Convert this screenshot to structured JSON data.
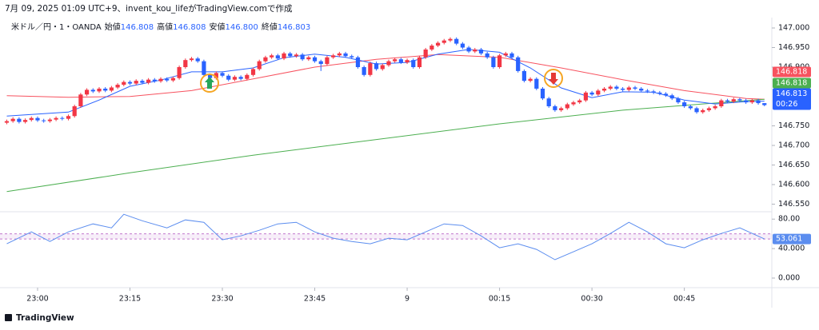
{
  "header": "7月 09, 2025 01:09 UTC+9、invent_kou_lifeがTradingView.comで作成",
  "footer": "TradingView",
  "chart_data": [
    {
      "type": "candlestick",
      "symbol": "米ドル／円・1・OANDA",
      "legend": [
        {
          "label": "始値",
          "value": "146.808"
        },
        {
          "label": "高値",
          "value": "146.808"
        },
        {
          "label": "安値",
          "value": "146.800"
        },
        {
          "label": "終値",
          "value": "146.803"
        }
      ],
      "up_color": "#f23645",
      "down_color": "#2962ff",
      "countdown": "00:26",
      "xlim": [
        -1.1,
        124.2
      ],
      "ylim": [
        146.5306,
        147.0204
      ],
      "yticks": [
        {
          "value": 147.0,
          "label": "147.000"
        },
        {
          "value": 146.95,
          "label": "146.950"
        },
        {
          "value": 146.9,
          "label": "146.900"
        },
        {
          "value": 146.75,
          "label": "146.750"
        },
        {
          "value": 146.7,
          "label": "146.700"
        },
        {
          "value": 146.65,
          "label": "146.650"
        },
        {
          "value": 146.6,
          "label": "146.600"
        },
        {
          "value": 146.55,
          "label": "146.550"
        }
      ],
      "xticks": [
        {
          "value": 5,
          "label": "23:00"
        },
        {
          "value": 20,
          "label": "23:15"
        },
        {
          "value": 35,
          "label": "23:30"
        },
        {
          "value": 50,
          "label": "23:45"
        },
        {
          "value": 65,
          "label": "9"
        },
        {
          "value": 80,
          "label": "00:15"
        },
        {
          "value": 95,
          "label": "00:30"
        },
        {
          "value": 110,
          "label": "00:45"
        }
      ],
      "candles": [
        [
          146.758,
          146.766,
          146.754,
          146.762
        ],
        [
          146.762,
          146.772,
          146.758,
          146.768
        ],
        [
          146.768,
          146.772,
          146.756,
          146.76
        ],
        [
          146.76,
          146.769,
          146.756,
          146.765
        ],
        [
          146.765,
          146.774,
          146.761,
          146.77
        ],
        [
          146.77,
          146.774,
          146.76,
          146.764
        ],
        [
          146.764,
          146.768,
          146.758,
          146.762
        ],
        [
          146.762,
          146.77,
          146.758,
          146.766
        ],
        [
          146.766,
          146.774,
          146.762,
          146.77
        ],
        [
          146.77,
          146.774,
          146.764,
          146.768
        ],
        [
          146.768,
          146.779,
          146.764,
          146.775
        ],
        [
          146.775,
          146.804,
          146.771,
          146.8
        ],
        [
          146.8,
          146.834,
          146.796,
          146.83
        ],
        [
          146.83,
          146.846,
          146.826,
          146.842
        ],
        [
          146.842,
          146.846,
          146.834,
          146.838
        ],
        [
          146.838,
          146.849,
          146.834,
          146.845
        ],
        [
          146.845,
          146.849,
          146.836,
          146.84
        ],
        [
          146.84,
          146.852,
          146.836,
          146.848
        ],
        [
          146.848,
          146.859,
          146.844,
          146.855
        ],
        [
          146.855,
          146.866,
          146.851,
          146.862
        ],
        [
          146.862,
          146.866,
          146.854,
          146.858
        ],
        [
          146.858,
          146.869,
          146.854,
          146.865
        ],
        [
          146.865,
          146.869,
          146.856,
          146.86
        ],
        [
          146.86,
          146.872,
          146.856,
          146.868
        ],
        [
          146.868,
          146.872,
          146.86,
          146.864
        ],
        [
          146.864,
          146.874,
          146.86,
          146.87
        ],
        [
          146.87,
          146.874,
          146.862,
          146.866
        ],
        [
          146.866,
          146.876,
          146.862,
          146.872
        ],
        [
          146.872,
          146.904,
          146.868,
          146.9
        ],
        [
          146.9,
          146.922,
          146.896,
          146.918
        ],
        [
          146.918,
          146.926,
          146.914,
          146.922
        ],
        [
          146.922,
          146.926,
          146.911,
          146.915
        ],
        [
          146.915,
          146.919,
          146.876,
          146.88
        ],
        [
          146.88,
          146.884,
          146.868,
          146.872
        ],
        [
          146.872,
          146.889,
          146.868,
          146.885
        ],
        [
          146.885,
          146.889,
          146.874,
          146.878
        ],
        [
          146.878,
          146.882,
          146.864,
          146.868
        ],
        [
          146.868,
          146.879,
          146.864,
          146.875
        ],
        [
          146.875,
          146.879,
          146.866,
          146.87
        ],
        [
          146.87,
          146.884,
          146.866,
          146.88
        ],
        [
          146.88,
          146.899,
          146.876,
          146.895
        ],
        [
          146.895,
          146.919,
          146.891,
          146.915
        ],
        [
          146.915,
          146.929,
          146.911,
          146.925
        ],
        [
          146.925,
          146.934,
          146.921,
          146.93
        ],
        [
          146.93,
          146.934,
          146.918,
          146.922
        ],
        [
          146.922,
          146.939,
          146.918,
          146.935
        ],
        [
          146.935,
          146.939,
          146.924,
          146.928
        ],
        [
          146.928,
          146.936,
          146.924,
          146.932
        ],
        [
          146.932,
          146.936,
          146.916,
          146.92
        ],
        [
          146.92,
          146.929,
          146.916,
          146.925
        ],
        [
          146.925,
          146.929,
          146.911,
          146.915
        ],
        [
          146.915,
          146.919,
          146.89,
          146.908
        ],
        [
          146.908,
          146.929,
          146.904,
          146.925
        ],
        [
          146.925,
          146.934,
          146.921,
          146.93
        ],
        [
          146.93,
          146.939,
          146.926,
          146.935
        ],
        [
          146.935,
          146.939,
          146.924,
          146.928
        ],
        [
          146.928,
          146.932,
          146.921,
          146.925
        ],
        [
          146.925,
          146.929,
          146.896,
          146.9
        ],
        [
          146.9,
          146.904,
          146.876,
          146.88
        ],
        [
          146.88,
          146.914,
          146.876,
          146.91
        ],
        [
          146.91,
          146.914,
          146.891,
          146.895
        ],
        [
          146.895,
          146.909,
          146.891,
          146.905
        ],
        [
          146.905,
          146.919,
          146.901,
          146.915
        ],
        [
          146.915,
          146.924,
          146.911,
          146.92
        ],
        [
          146.92,
          146.924,
          146.908,
          146.912
        ],
        [
          146.912,
          146.922,
          146.908,
          146.918
        ],
        [
          146.918,
          146.922,
          146.896,
          146.9
        ],
        [
          146.9,
          146.929,
          146.896,
          146.925
        ],
        [
          146.925,
          146.949,
          146.921,
          146.945
        ],
        [
          146.945,
          146.959,
          146.941,
          146.955
        ],
        [
          146.955,
          146.966,
          146.951,
          146.962
        ],
        [
          146.962,
          146.972,
          146.958,
          146.968
        ],
        [
          146.968,
          146.976,
          146.964,
          146.972
        ],
        [
          146.972,
          146.976,
          146.956,
          146.96
        ],
        [
          146.96,
          146.964,
          146.946,
          146.95
        ],
        [
          146.95,
          146.954,
          146.936,
          146.94
        ],
        [
          146.94,
          146.949,
          146.936,
          146.945
        ],
        [
          146.945,
          146.949,
          146.931,
          146.935
        ],
        [
          146.935,
          146.939,
          146.921,
          146.925
        ],
        [
          146.925,
          146.929,
          146.896,
          146.9
        ],
        [
          146.9,
          146.934,
          146.896,
          146.93
        ],
        [
          146.93,
          146.939,
          146.926,
          146.935
        ],
        [
          146.935,
          146.939,
          146.921,
          146.925
        ],
        [
          146.925,
          146.929,
          146.886,
          146.89
        ],
        [
          146.89,
          146.894,
          146.861,
          146.865
        ],
        [
          146.865,
          146.874,
          146.861,
          146.87
        ],
        [
          146.87,
          146.874,
          146.841,
          146.845
        ],
        [
          146.845,
          146.849,
          146.816,
          146.82
        ],
        [
          146.82,
          146.824,
          146.796,
          146.8
        ],
        [
          146.8,
          146.804,
          146.786,
          146.79
        ],
        [
          146.79,
          146.799,
          146.786,
          146.795
        ],
        [
          146.795,
          146.809,
          146.791,
          146.805
        ],
        [
          146.805,
          146.814,
          146.801,
          146.81
        ],
        [
          146.81,
          146.819,
          146.806,
          146.815
        ],
        [
          146.815,
          146.839,
          146.811,
          146.835
        ],
        [
          146.835,
          146.839,
          146.826,
          146.83
        ],
        [
          146.83,
          146.844,
          146.826,
          146.84
        ],
        [
          146.84,
          146.849,
          146.836,
          146.845
        ],
        [
          146.845,
          146.854,
          146.841,
          146.85
        ],
        [
          146.85,
          146.854,
          146.841,
          146.845
        ],
        [
          146.845,
          146.849,
          146.838,
          146.842
        ],
        [
          146.842,
          146.852,
          146.838,
          146.848
        ],
        [
          146.848,
          146.852,
          146.841,
          146.845
        ],
        [
          146.845,
          146.849,
          146.836,
          146.84
        ],
        [
          146.84,
          146.844,
          146.834,
          146.838
        ],
        [
          146.838,
          146.842,
          146.831,
          146.835
        ],
        [
          146.835,
          146.839,
          146.828,
          146.832
        ],
        [
          146.832,
          146.836,
          146.824,
          146.828
        ],
        [
          146.828,
          146.832,
          146.816,
          146.82
        ],
        [
          146.82,
          146.824,
          146.806,
          146.81
        ],
        [
          146.81,
          146.814,
          146.796,
          146.8
        ],
        [
          146.8,
          146.804,
          146.791,
          146.795
        ],
        [
          146.795,
          146.799,
          146.781,
          146.785
        ],
        [
          146.785,
          146.794,
          146.781,
          146.79
        ],
        [
          146.79,
          146.799,
          146.786,
          146.795
        ],
        [
          146.795,
          146.804,
          146.791,
          146.8
        ],
        [
          146.8,
          146.819,
          146.796,
          146.815
        ],
        [
          146.815,
          146.819,
          146.808,
          146.812
        ],
        [
          146.812,
          146.822,
          146.808,
          146.818
        ],
        [
          146.818,
          146.822,
          146.811,
          146.815
        ],
        [
          146.815,
          146.819,
          146.806,
          146.81
        ],
        [
          146.81,
          146.819,
          146.806,
          146.815
        ],
        [
          146.815,
          146.819,
          146.804,
          146.808
        ],
        [
          146.808,
          146.808,
          146.8,
          146.803
        ]
      ],
      "series": [
        {
          "color": "#f7525f",
          "x": [
            0,
            10,
            20,
            30,
            40,
            50,
            60,
            70,
            80,
            90,
            100,
            110,
            120,
            123
          ],
          "values": [
            146.827,
            146.823,
            146.825,
            146.84,
            146.87,
            146.9,
            146.92,
            146.932,
            146.925,
            146.898,
            146.868,
            146.84,
            146.82,
            146.818
          ]
        },
        {
          "color": "#4caf50",
          "x": [
            0,
            20,
            40,
            60,
            80,
            100,
            123
          ],
          "values": [
            146.582,
            146.63,
            146.675,
            146.715,
            146.755,
            146.79,
            146.818
          ]
        },
        {
          "color": "#2962ff",
          "x": [
            0,
            10,
            15,
            20,
            25,
            30,
            35,
            40,
            45,
            50,
            55,
            60,
            65,
            70,
            75,
            80,
            85,
            90,
            95,
            100,
            105,
            110,
            115,
            120,
            123
          ],
          "values": [
            146.775,
            146.785,
            146.816,
            146.851,
            146.867,
            146.888,
            146.888,
            146.898,
            146.924,
            146.933,
            146.925,
            146.908,
            146.912,
            146.933,
            146.945,
            146.938,
            146.898,
            146.847,
            146.822,
            146.837,
            146.836,
            146.816,
            146.806,
            146.812,
            146.813
          ]
        }
      ]
    },
    {
      "type": "line",
      "xlim": [
        -1.1,
        124.2
      ],
      "ylim": [
        -13,
        90
      ],
      "yticks": [
        {
          "value": 80,
          "label": "80.00"
        },
        {
          "value": 40,
          "label": "40.000"
        },
        {
          "value": 0,
          "label": "0.000"
        }
      ],
      "bands": [
        60,
        53
      ],
      "band_color": "#9c27b0",
      "series": [
        {
          "color": "#5b8def",
          "x": [
            0,
            4,
            7,
            10,
            14,
            17,
            19,
            22,
            26,
            29,
            32,
            35,
            38,
            41,
            44,
            47,
            50,
            53,
            56,
            59,
            62,
            65,
            68,
            71,
            74,
            77,
            80,
            83,
            86,
            89,
            92,
            95,
            98,
            101,
            104,
            107,
            110,
            113,
            116,
            119,
            123
          ],
          "values": [
            46.5,
            62.7,
            49.7,
            62.7,
            73.5,
            68.1,
            86.5,
            77.8,
            68.1,
            78.9,
            75.7,
            51.9,
            57.3,
            64.9,
            73.5,
            75.7,
            62.7,
            54.1,
            49.7,
            46.5,
            54.1,
            51.9,
            62.7,
            73.5,
            71.4,
            57.3,
            41.1,
            46.5,
            38.9,
            24.9,
            35.7,
            46.5,
            60.5,
            75.7,
            62.7,
            46.5,
            41.1,
            51.9,
            60.5,
            68.1,
            53.061
          ]
        }
      ]
    }
  ]
}
